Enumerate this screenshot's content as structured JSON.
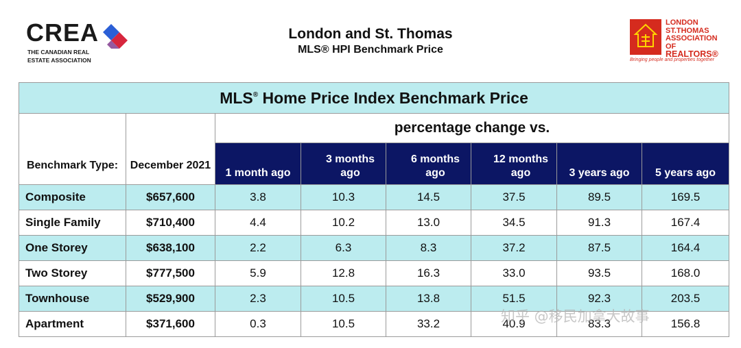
{
  "header": {
    "crea_logo": {
      "word": "CREA",
      "sub": "THE CANADIAN REAL ESTATE ASSOCIATION"
    },
    "title": "London and St. Thomas",
    "subtitle": "MLS® HPI Benchmark Price",
    "lsta_logo": {
      "line1": "LONDON",
      "line2": "ST.THOMAS",
      "line3": "ASSOCIATION OF",
      "line4": "REALTORS®",
      "tagline": "Bringing people and properties together"
    }
  },
  "table": {
    "title_main": "MLS",
    "title_sup": "®",
    "title_rest": " Home Price Index Benchmark Price",
    "pct_header": "percentage change vs.",
    "col_type": "Benchmark Type:",
    "col_price": "December 2021",
    "change_cols": [
      "1 month ago",
      "3 months ago",
      "6 months ago",
      "12 months ago",
      "3 years ago",
      "5 years ago"
    ],
    "rows": [
      {
        "type": "Composite",
        "price": "$657,600",
        "vals": [
          "3.8",
          "10.3",
          "14.5",
          "37.5",
          "89.5",
          "169.5"
        ]
      },
      {
        "type": "Single Family",
        "price": "$710,400",
        "vals": [
          "4.4",
          "10.2",
          "13.0",
          "34.5",
          "91.3",
          "167.4"
        ]
      },
      {
        "type": "One Storey",
        "price": "$638,100",
        "vals": [
          "2.2",
          "6.3",
          "8.3",
          "37.2",
          "87.5",
          "164.4"
        ]
      },
      {
        "type": "Two Storey",
        "price": "$777,500",
        "vals": [
          "5.9",
          "12.8",
          "16.3",
          "33.0",
          "93.5",
          "168.0"
        ]
      },
      {
        "type": "Townhouse",
        "price": "$529,900",
        "vals": [
          "2.3",
          "10.5",
          "13.8",
          "51.5",
          "92.3",
          "203.5"
        ]
      },
      {
        "type": "Apartment",
        "price": "$371,600",
        "vals": [
          "0.3",
          "10.5",
          "33.2",
          "40.9",
          "83.3",
          "156.8"
        ]
      }
    ]
  },
  "watermark": "知乎 @移民加拿大故事",
  "colors": {
    "accent_cyan": "#bcecef",
    "header_navy": "#0c1664",
    "lsta_red": "#d52b1e"
  }
}
